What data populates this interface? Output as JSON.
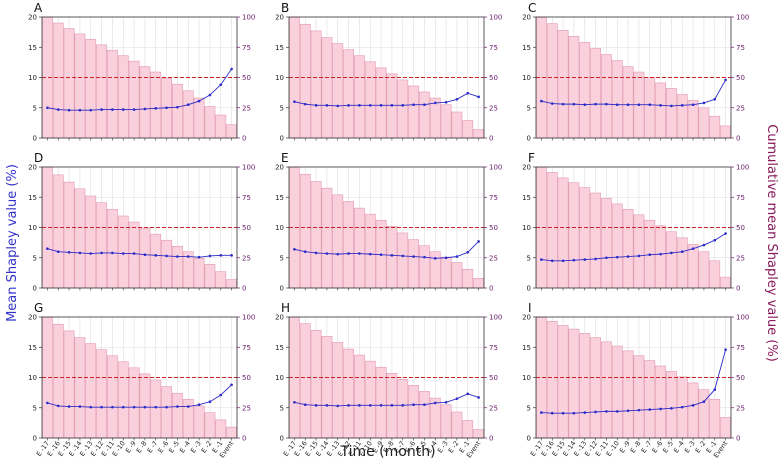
{
  "figure": {
    "xlabel": "Time (month)",
    "ylabel_left": "Mean Shapley value (%)",
    "ylabel_right": "Cumulative mean Shapley value (%)"
  },
  "colors": {
    "bar_fill": "#f9d0dc",
    "bar_stroke": "#e29ab2",
    "line": "#2a2ac8",
    "threshold": "#cc2222",
    "right_axis": "#6a1b6a",
    "grid": "#dddddd"
  },
  "chart_data": {
    "type": "bar+line",
    "categories": [
      "E -17",
      "E -16",
      "E -15",
      "E -14",
      "E -13",
      "E -12",
      "E -11",
      "E -10",
      "E -9",
      "E -8",
      "E -7",
      "E -6",
      "E -5",
      "E -4",
      "E -3",
      "E -2",
      "E -1",
      "Event"
    ],
    "left_ylim": [
      0,
      20
    ],
    "left_ticks": [
      0,
      5,
      10,
      15,
      20
    ],
    "right_ylim": [
      0,
      100
    ],
    "right_ticks": [
      0,
      25,
      50,
      75,
      100
    ],
    "threshold_right": 50,
    "grid": true,
    "panels": [
      {
        "label": "A",
        "bars": [
          100,
          95,
          90.5,
          86,
          81.5,
          77,
          72.5,
          68,
          63.5,
          59,
          54.5,
          49.5,
          44.5,
          39,
          33,
          26,
          19,
          11
        ],
        "line": [
          5.0,
          4.7,
          4.6,
          4.6,
          4.6,
          4.7,
          4.7,
          4.7,
          4.7,
          4.8,
          4.9,
          5.0,
          5.1,
          5.5,
          6.1,
          7.1,
          8.8,
          11.4
        ]
      },
      {
        "label": "B",
        "bars": [
          100,
          94,
          88.5,
          83,
          78,
          73,
          68,
          63,
          58,
          53,
          48,
          43,
          38,
          33,
          27.5,
          21.5,
          14.5,
          7
        ],
        "line": [
          6.0,
          5.6,
          5.4,
          5.4,
          5.3,
          5.4,
          5.4,
          5.4,
          5.4,
          5.4,
          5.4,
          5.5,
          5.5,
          5.8,
          5.9,
          6.4,
          7.4,
          6.8
        ]
      },
      {
        "label": "C",
        "bars": [
          100,
          94.5,
          89,
          84,
          79,
          74,
          69,
          64,
          59,
          54.5,
          50,
          45.5,
          41,
          36,
          31,
          25,
          18,
          10
        ],
        "line": [
          6.1,
          5.7,
          5.6,
          5.6,
          5.5,
          5.6,
          5.6,
          5.5,
          5.5,
          5.5,
          5.5,
          5.4,
          5.3,
          5.4,
          5.5,
          5.8,
          6.4,
          9.6
        ]
      },
      {
        "label": "D",
        "bars": [
          100,
          93.5,
          87.5,
          82,
          76,
          70.5,
          65,
          59.5,
          54.5,
          49.5,
          44.5,
          39.5,
          34.5,
          30,
          24.5,
          19.5,
          13.5,
          7
        ],
        "line": [
          6.5,
          6.0,
          5.9,
          5.8,
          5.7,
          5.8,
          5.8,
          5.7,
          5.7,
          5.5,
          5.4,
          5.3,
          5.2,
          5.2,
          5.1,
          5.3,
          5.4,
          5.4
        ]
      },
      {
        "label": "E",
        "bars": [
          100,
          94,
          88,
          82.5,
          77,
          71.5,
          66,
          61,
          56,
          51,
          45.5,
          40,
          35,
          30,
          25.5,
          21,
          15.5,
          8
        ],
        "line": [
          6.4,
          6.0,
          5.8,
          5.7,
          5.6,
          5.7,
          5.7,
          5.6,
          5.5,
          5.4,
          5.3,
          5.2,
          5.1,
          4.9,
          5.0,
          5.2,
          5.9,
          7.7
        ]
      },
      {
        "label": "F",
        "bars": [
          100,
          95.5,
          91,
          87,
          83,
          78.5,
          74,
          69.5,
          65,
          60.5,
          56,
          51.5,
          46.5,
          41.5,
          36,
          30,
          22.5,
          9
        ],
        "line": [
          4.7,
          4.5,
          4.5,
          4.6,
          4.7,
          4.8,
          5.0,
          5.1,
          5.2,
          5.3,
          5.5,
          5.6,
          5.8,
          6.0,
          6.5,
          7.1,
          7.9,
          9.0
        ]
      },
      {
        "label": "G",
        "bars": [
          100,
          94,
          88.5,
          83,
          78,
          73,
          68,
          63,
          58,
          53,
          48,
          42.5,
          37,
          32,
          26.5,
          21,
          15,
          9
        ],
        "line": [
          5.8,
          5.3,
          5.2,
          5.2,
          5.1,
          5.1,
          5.1,
          5.1,
          5.1,
          5.1,
          5.1,
          5.1,
          5.2,
          5.2,
          5.5,
          6.0,
          7.1,
          8.8
        ]
      },
      {
        "label": "H",
        "bars": [
          100,
          94.5,
          89,
          84,
          79,
          73.5,
          68.5,
          63.5,
          58.5,
          53.5,
          48.5,
          43.5,
          38.5,
          33,
          27.5,
          21.5,
          14.5,
          7
        ],
        "line": [
          5.9,
          5.5,
          5.4,
          5.4,
          5.3,
          5.4,
          5.4,
          5.4,
          5.4,
          5.4,
          5.4,
          5.5,
          5.5,
          5.8,
          5.9,
          6.5,
          7.3,
          6.7
        ]
      },
      {
        "label": "I",
        "bars": [
          100,
          96.5,
          93,
          90,
          86.5,
          83,
          79.5,
          76,
          72,
          68,
          64,
          59.5,
          55,
          50.5,
          45.5,
          40,
          32,
          17
        ],
        "line": [
          4.2,
          4.1,
          4.1,
          4.1,
          4.2,
          4.3,
          4.4,
          4.4,
          4.5,
          4.6,
          4.7,
          4.8,
          4.9,
          5.1,
          5.4,
          6.0,
          8.0,
          14.6
        ]
      }
    ]
  }
}
